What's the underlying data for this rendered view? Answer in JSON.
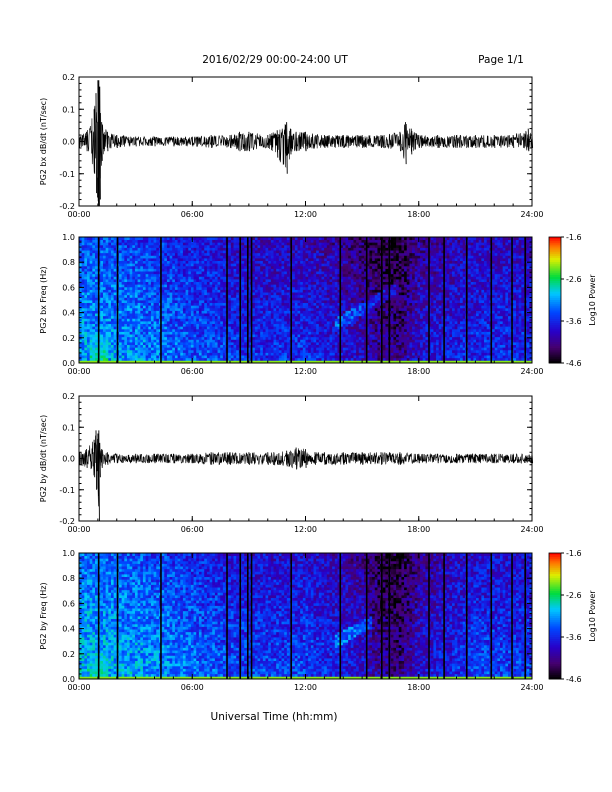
{
  "header": {
    "date_line": "2016/02/29  00:00-24:00 UT",
    "page_label": "Page 1/1"
  },
  "x_axis_label": "Universal Time (hh:mm)",
  "colorbar": {
    "label": "Log10 Power",
    "ticks": [
      "-1.6",
      "-2.6",
      "-3.6",
      "-4.6"
    ],
    "range": [
      -4.6,
      -1.6
    ],
    "colormap": "rainbow (black-purple-blue-cyan-green-yellow-red)"
  },
  "chart_data": [
    {
      "type": "line",
      "ylabel": "PG2 bx dB/dt (nT/sec)",
      "xlim": [
        0,
        24
      ],
      "ylim": [
        -0.2,
        0.2
      ],
      "x_ticks": [
        "00:00",
        "06:00",
        "12:00",
        "18:00",
        "24:00"
      ],
      "y_ticks": [
        "0.2",
        "0.1",
        "0.0",
        "-0.1",
        "-0.2"
      ],
      "x": [
        0.0,
        0.4,
        0.8,
        0.9,
        1.0,
        1.05,
        1.1,
        1.2,
        1.5,
        2.0,
        3.0,
        4.0,
        5.0,
        6.0,
        7.0,
        8.0,
        8.5,
        9.0,
        10.0,
        10.5,
        11.0,
        11.2,
        11.5,
        12.0,
        13.0,
        14.0,
        15.0,
        16.0,
        17.0,
        17.3,
        17.6,
        18.0,
        19.0,
        20.0,
        21.0,
        22.0,
        23.0,
        23.8,
        24.0
      ],
      "y_max": [
        0.02,
        0.03,
        0.1,
        0.15,
        0.19,
        0.19,
        0.17,
        0.06,
        0.03,
        0.02,
        0.015,
        0.015,
        0.015,
        0.015,
        0.02,
        0.02,
        0.03,
        0.03,
        0.02,
        0.035,
        0.06,
        0.04,
        0.03,
        0.03,
        0.02,
        0.02,
        0.02,
        0.02,
        0.03,
        0.06,
        0.04,
        0.02,
        0.02,
        0.02,
        0.02,
        0.02,
        0.02,
        0.04,
        0.02
      ],
      "y_min": [
        -0.02,
        -0.03,
        -0.1,
        -0.16,
        -0.2,
        -0.2,
        -0.18,
        -0.06,
        -0.03,
        -0.02,
        -0.015,
        -0.015,
        -0.015,
        -0.015,
        -0.02,
        -0.02,
        -0.03,
        -0.03,
        -0.02,
        -0.05,
        -0.1,
        -0.04,
        -0.03,
        -0.03,
        -0.02,
        -0.02,
        -0.02,
        -0.02,
        -0.03,
        -0.07,
        -0.04,
        -0.02,
        -0.02,
        -0.02,
        -0.02,
        -0.02,
        -0.02,
        -0.03,
        -0.02
      ]
    },
    {
      "type": "heatmap",
      "ylabel": "PG2 bx Freq (Hz)",
      "xlim": [
        0,
        24
      ],
      "ylim": [
        0.0,
        1.0
      ],
      "x_ticks": [
        "00:00",
        "06:00",
        "12:00",
        "18:00",
        "24:00"
      ],
      "y_ticks": [
        "1.0",
        "0.8",
        "0.6",
        "0.4",
        "0.2",
        "0.0"
      ],
      "x_anchor_hours": [
        0,
        3,
        6,
        9,
        12,
        15,
        16,
        17,
        18,
        21,
        24
      ],
      "mean_log_power_at_anchors": [
        -3.3,
        -3.4,
        -3.6,
        -3.8,
        -3.8,
        -4.1,
        -4.3,
        -4.4,
        -4.0,
        -3.8,
        -3.8
      ],
      "low_freq_enhancement": {
        "x_range": [
          0.5,
          1.5
        ],
        "freq_max": 0.25,
        "peak_log_power": -2.6
      },
      "rising_tone": {
        "x_start": 13.5,
        "x_end": 17.0,
        "freq_start": 0.3,
        "freq_end": 0.6
      },
      "data_gaps_hours": [
        1.0,
        2.0,
        4.3,
        7.8,
        8.5,
        8.9,
        9.1,
        11.2,
        13.8,
        15.2,
        16.0,
        16.4,
        18.5,
        19.3,
        20.5,
        21.8,
        22.9,
        23.6
      ]
    },
    {
      "type": "line",
      "ylabel": "PG2 by dB/dt (nT/sec)",
      "xlim": [
        0,
        24
      ],
      "ylim": [
        -0.2,
        0.2
      ],
      "x_ticks": [
        "00:00",
        "06:00",
        "12:00",
        "18:00",
        "24:00"
      ],
      "y_ticks": [
        "0.2",
        "0.1",
        "0.0",
        "-0.1",
        "-0.2"
      ],
      "x": [
        0.0,
        0.4,
        0.8,
        0.9,
        1.0,
        1.05,
        1.1,
        1.2,
        1.5,
        2.0,
        3.0,
        4.0,
        5.0,
        6.0,
        7.0,
        8.0,
        9.0,
        10.0,
        11.0,
        11.5,
        12.0,
        12.5,
        13.0,
        14.0,
        15.0,
        16.0,
        17.0,
        18.0,
        19.0,
        20.0,
        21.0,
        22.0,
        23.0,
        24.0
      ],
      "y_max": [
        0.02,
        0.03,
        0.06,
        0.09,
        0.08,
        0.09,
        0.05,
        0.03,
        0.02,
        0.015,
        0.015,
        0.015,
        0.015,
        0.015,
        0.02,
        0.02,
        0.02,
        0.02,
        0.025,
        0.035,
        0.03,
        0.02,
        0.02,
        0.02,
        0.02,
        0.02,
        0.02,
        0.015,
        0.015,
        0.015,
        0.015,
        0.015,
        0.015,
        0.015
      ],
      "y_min": [
        -0.02,
        -0.03,
        -0.06,
        -0.1,
        -0.12,
        -0.2,
        -0.06,
        -0.03,
        -0.02,
        -0.015,
        -0.015,
        -0.015,
        -0.015,
        -0.015,
        -0.02,
        -0.02,
        -0.02,
        -0.02,
        -0.025,
        -0.035,
        -0.03,
        -0.02,
        -0.02,
        -0.02,
        -0.02,
        -0.02,
        -0.02,
        -0.015,
        -0.015,
        -0.015,
        -0.015,
        -0.015,
        -0.015,
        -0.015
      ]
    },
    {
      "type": "heatmap",
      "ylabel": "PG2 by Freq (Hz)",
      "xlim": [
        0,
        24
      ],
      "ylim": [
        0.0,
        1.0
      ],
      "x_ticks": [
        "00:00",
        "06:00",
        "12:00",
        "18:00",
        "24:00"
      ],
      "y_ticks": [
        "1.0",
        "0.8",
        "0.6",
        "0.4",
        "0.2",
        "0.0"
      ],
      "x_anchor_hours": [
        0,
        3,
        6,
        9,
        12,
        15,
        16,
        17,
        18,
        21,
        24
      ],
      "mean_log_power_at_anchors": [
        -3.2,
        -3.3,
        -3.5,
        -3.7,
        -3.7,
        -4.0,
        -4.3,
        -4.4,
        -4.0,
        -3.7,
        -3.7
      ],
      "low_freq_enhancement": {
        "x_range": [
          0.5,
          1.5
        ],
        "freq_max": 0.25,
        "peak_log_power": -2.7
      },
      "rising_tone": {
        "x_start": 13.5,
        "x_end": 15.5,
        "freq_start": 0.3,
        "freq_end": 0.45
      },
      "data_gaps_hours": [
        1.0,
        2.0,
        4.3,
        7.8,
        8.5,
        8.9,
        9.1,
        11.2,
        13.8,
        15.2,
        16.0,
        16.4,
        18.5,
        19.3,
        20.5,
        21.8,
        22.9,
        23.6
      ]
    }
  ]
}
